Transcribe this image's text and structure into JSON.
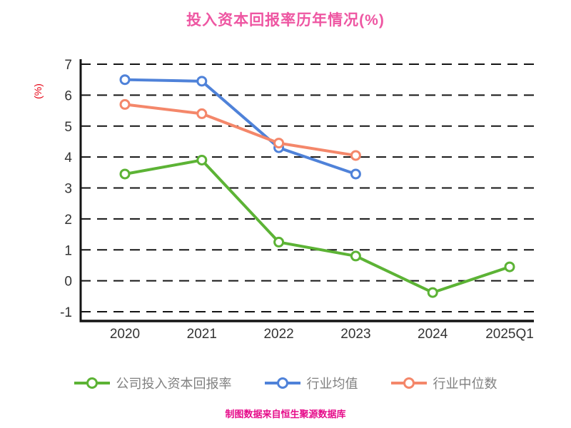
{
  "title": "投入资本回报率历年情况(%)",
  "footer": "制图数据来自恒生聚源数据库",
  "colors": {
    "title": "#ee56a2",
    "footer": "#e60c8a",
    "axis": "#141414",
    "grid": "#141414",
    "tick_label": "#333333",
    "legend_label": "#808080",
    "ylabel": "#e60012",
    "marker_fill": "#ffffff"
  },
  "chart_data": {
    "type": "line",
    "title": "投入资本回报率历年情况(%)",
    "xlabel": "",
    "ylabel": "(%)",
    "categories": [
      "2020",
      "2021",
      "2022",
      "2023",
      "2024",
      "2025Q1"
    ],
    "ylim": [
      -1,
      7
    ],
    "yticks": [
      7,
      6,
      5,
      4,
      3,
      2,
      1,
      0,
      -1
    ],
    "grid": "horizontal-dashed",
    "legend_position": "bottom",
    "series": [
      {
        "name": "公司投入资本回报率",
        "color": "#5cb335",
        "values": [
          3.45,
          3.9,
          1.25,
          0.8,
          -0.38,
          0.45
        ]
      },
      {
        "name": "行业均值",
        "color": "#4f82d9",
        "values": [
          6.5,
          6.45,
          4.3,
          3.45,
          null,
          null
        ]
      },
      {
        "name": "行业中位数",
        "color": "#f4876a",
        "values": [
          5.7,
          5.4,
          4.45,
          4.05,
          null,
          null
        ]
      }
    ]
  }
}
